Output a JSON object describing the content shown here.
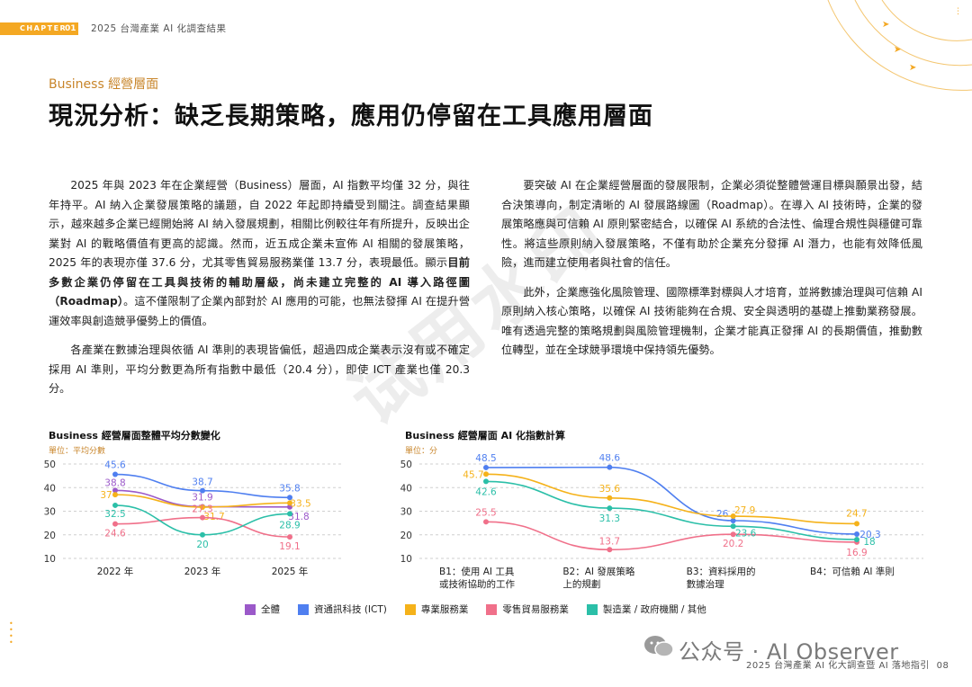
{
  "header": {
    "chapter_label": "CHAPTER",
    "chapter_number": "01",
    "report_title": "2025 台灣產業 AI 化調查結果"
  },
  "section_label": "Business 經營層面",
  "main_title": "現況分析：缺乏長期策略，應用仍停留在工具應用層面",
  "left_column": {
    "p1_a": "2025 年與 2023 年在企業經營（Business）層面，AI 指數平均僅 32 分，與往年持平。AI 納入企業發展策略的議題，自 2022 年起即持續受到關注。調查結果顯示，越來越多企業已經開始將 AI 納入發展規劃，相關比例較往年有所提升，反映出企業對 AI 的戰略價值有更高的認識。然而，近五成企業未宣佈 AI 相關的發展策略，2025 年的表現亦僅 37.6 分，尤其零售貿易服務業僅 13.7 分，表現最低。顯示",
    "p1_bold": "目前多數企業仍停留在工具與技術的輔助層級，尚未建立完整的 AI 導入路徑圖（Roadmap）",
    "p1_b": "。這不僅限制了企業內部對於 AI 應用的可能，也無法發揮 AI 在提升營運效率與創造競爭優勢上的價值。",
    "p2": "各產業在數據治理與依循 AI 準則的表現皆偏低，超過四成企業表示沒有或不確定採用 AI 準則，平均分數更為所有指數中最低（20.4 分），即使 ICT 產業也僅 20.3 分。"
  },
  "right_column": {
    "p1": "要突破 AI 在企業經營層面的發展限制，企業必須從整體營運目標與願景出發，結合決策導向，制定清晰的 AI 發展路線圖（Roadmap）。在導入 AI 技術時，企業的發展策略應與可信賴 AI 原則緊密結合，以確保 AI 系統的合法性、倫理合規性與穩健可靠性。將這些原則納入發展策略，不僅有助於企業充分發揮 AI 潛力，也能有效降低風險，進而建立使用者與社會的信任。",
    "p2": "此外，企業應強化風險管理、國際標準對標與人才培育，並將數據治理與可信賴 AI 原則納入核心策略，以確保 AI 技術能夠在合規、安全與透明的基礎上推動業務發展。唯有透過完整的策略規劃與風險管理機制，企業才能真正發揮 AI 的長期價值，推動數位轉型，並在全球競爭環境中保持領先優勢。"
  },
  "watermark": "试用水印",
  "chart_data": [
    {
      "type": "line",
      "title": "Business 經營層面整體平均分數變化",
      "unit": "單位：平均分數",
      "x": [
        "2022 年",
        "2023 年",
        "2025 年"
      ],
      "ylim": [
        10,
        50
      ],
      "yticks": [
        10,
        20,
        30,
        40,
        50
      ],
      "series": [
        {
          "name": "全體",
          "color": "#9b59c9",
          "values": [
            38.8,
            31.9,
            31.8
          ]
        },
        {
          "name": "資通訊科技 (ICT)",
          "color": "#4f7ff0",
          "values": [
            45.6,
            38.7,
            35.8
          ]
        },
        {
          "name": "專業服務業",
          "color": "#f5b21a",
          "values": [
            37.0,
            31.7,
            33.5
          ]
        },
        {
          "name": "零售貿易服務業",
          "color": "#f0708a",
          "values": [
            24.6,
            27.3,
            19.1
          ]
        },
        {
          "name": "製造業 / 政府機關 / 其他",
          "color": "#2bbfa8",
          "values": [
            32.5,
            20.0,
            28.9
          ]
        }
      ],
      "data_labels": [
        [
          "38.8",
          "31.9",
          "31.8"
        ],
        [
          "45.6",
          "38.7",
          "35.8"
        ],
        [
          "37",
          "31.7",
          "33.5"
        ],
        [
          "24.6",
          "27.3",
          "19.1"
        ],
        [
          "32.5",
          "20",
          "28.9"
        ]
      ]
    },
    {
      "type": "line",
      "title": "Business 經營層面 AI 化指數計算",
      "unit": "單位：分",
      "x": [
        "B1：使用 AI 工具或技術協助的工作",
        "B2：AI 發展策略上的規劃",
        "B3：資料採用的數據治理",
        "B4：可信賴 AI 準則"
      ],
      "x_lines": [
        [
          "B1：使用 AI 工具",
          "或技術協助的工作"
        ],
        [
          "B2：AI 發展策略",
          "上的規劃"
        ],
        [
          "B3：資料採用的",
          "數據治理"
        ],
        [
          "B4：可信賴 AI 準則"
        ]
      ],
      "ylim": [
        10,
        50
      ],
      "yticks": [
        10,
        20,
        30,
        40,
        50
      ],
      "series": [
        {
          "name": "資通訊科技 (ICT)",
          "color": "#4f7ff0",
          "values": [
            48.5,
            48.6,
            26.0,
            20.3
          ]
        },
        {
          "name": "專業服務業",
          "color": "#f5b21a",
          "values": [
            45.7,
            35.6,
            27.9,
            24.7
          ]
        },
        {
          "name": "零售貿易服務業",
          "color": "#f0708a",
          "values": [
            25.5,
            13.7,
            20.2,
            16.9
          ]
        },
        {
          "name": "製造業 / 政府機關 / 其他",
          "color": "#2bbfa8",
          "values": [
            42.6,
            31.3,
            23.6,
            18.0
          ]
        }
      ],
      "data_labels": [
        [
          "48.5",
          "48.6",
          "26",
          "20.3"
        ],
        [
          "45.7",
          "35.6",
          "27.9",
          "24.7"
        ],
        [
          "25.5",
          "13.7",
          "20.2",
          "16.9"
        ],
        [
          "42.6",
          "31.3",
          "23.6",
          "18"
        ]
      ]
    }
  ],
  "legend": [
    {
      "name": "全體",
      "color": "#9b59c9"
    },
    {
      "name": "資通訊科技 (ICT)",
      "color": "#4f7ff0"
    },
    {
      "name": "專業服務業",
      "color": "#f5b21a"
    },
    {
      "name": "零售貿易服務業",
      "color": "#f0708a"
    },
    {
      "name": "製造業 / 政府機關 / 其他",
      "color": "#2bbfa8"
    }
  ],
  "footer": {
    "brand": "公众号 · AI Observer",
    "page_text": "2025 台灣產業 AI 化大調查暨 AI 落地指引",
    "page_number": "08"
  }
}
